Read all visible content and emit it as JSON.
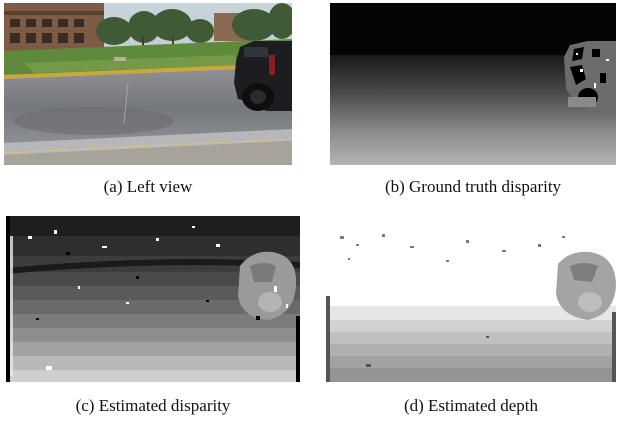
{
  "figures": [
    {
      "id": "a",
      "caption": "(a) Left view"
    },
    {
      "id": "b",
      "caption": "(b) Ground truth disparity"
    },
    {
      "id": "c",
      "caption": "(c) Estimated disparity"
    },
    {
      "id": "d",
      "caption": "(d) Estimated depth"
    }
  ]
}
